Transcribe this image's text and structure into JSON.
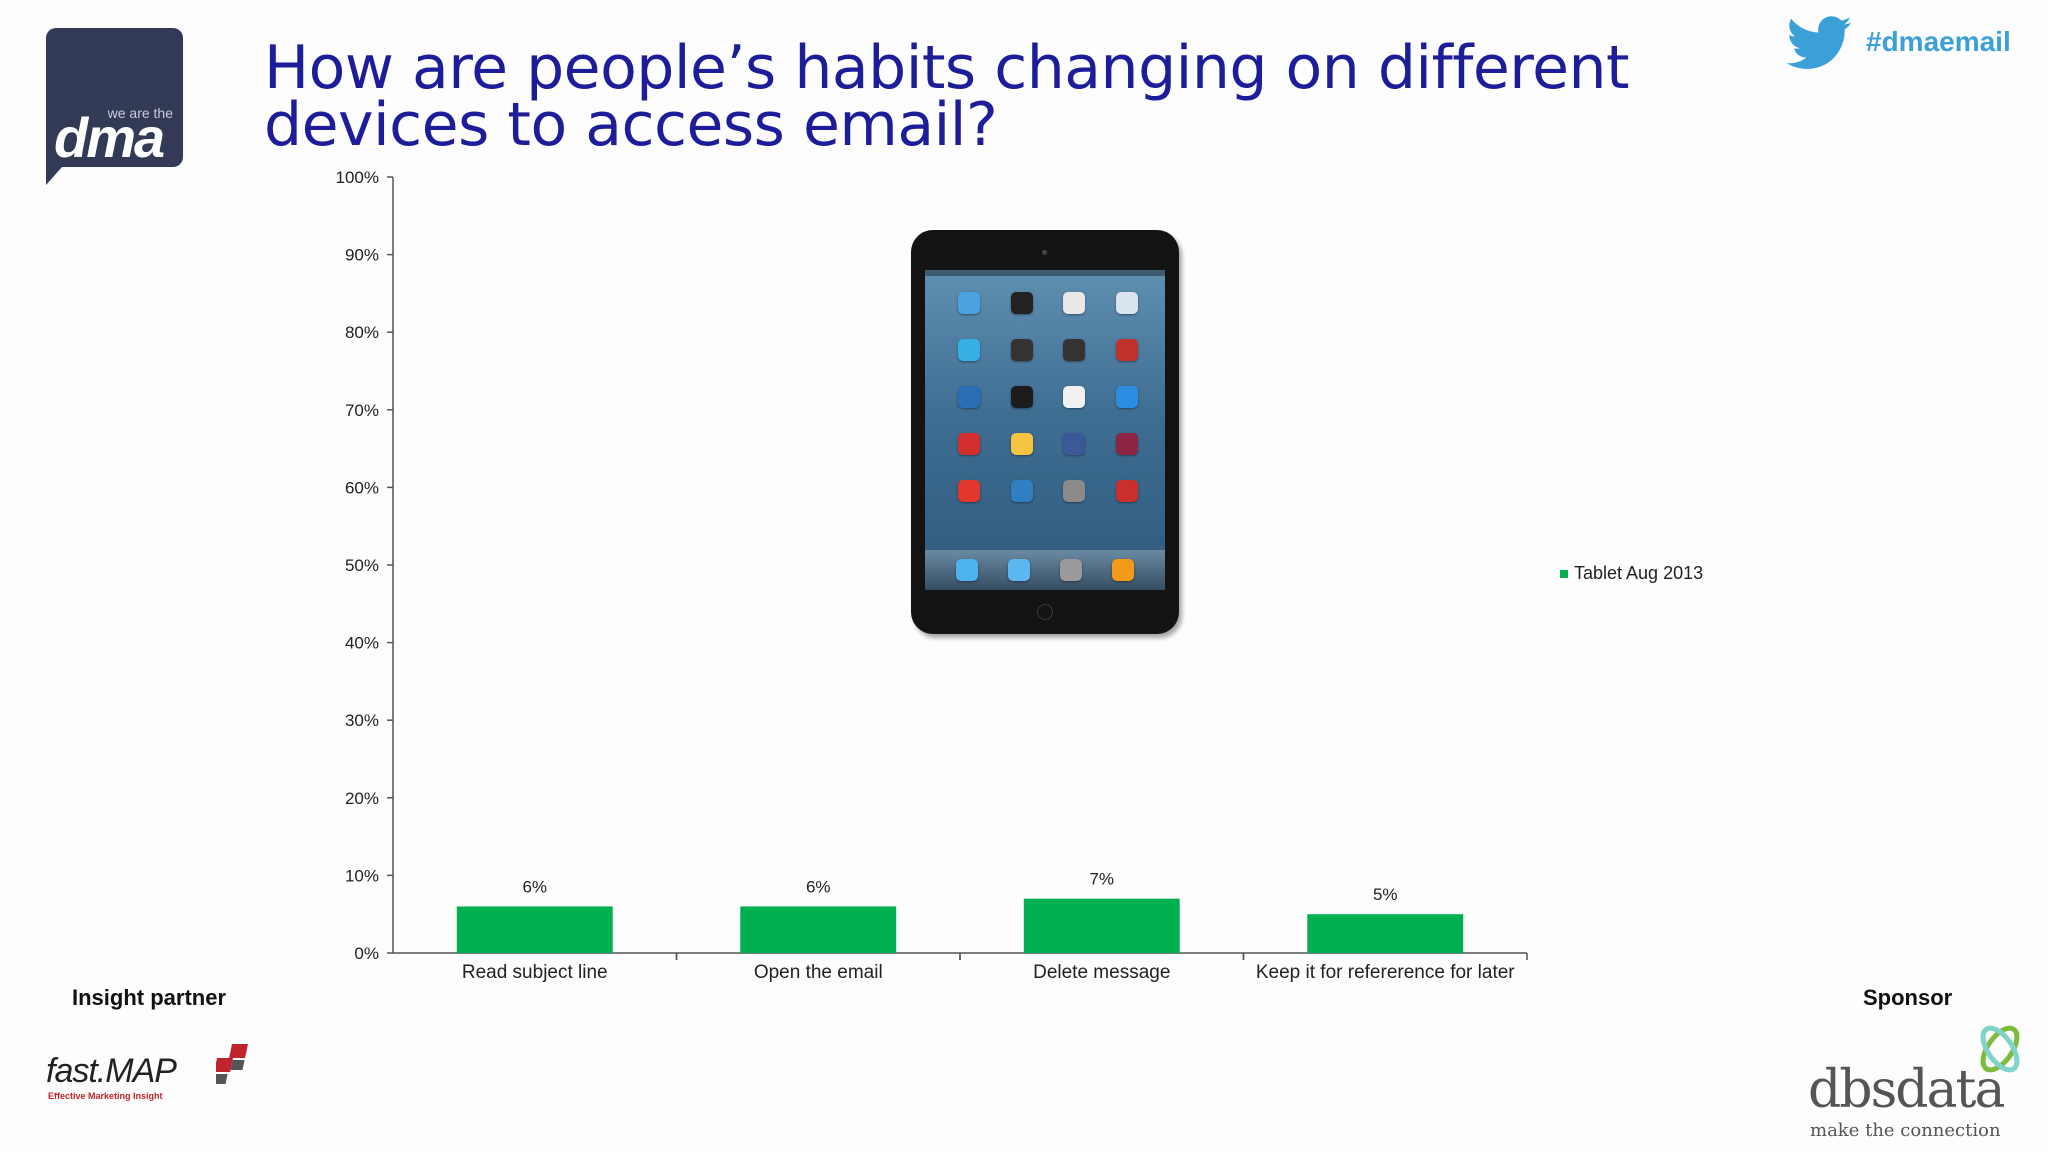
{
  "header": {
    "title": "How are people’s habits changing on different devices to access email?",
    "hashtag": "#dmaemail",
    "logo_text": "dma",
    "logo_subtext": "we are the"
  },
  "footer": {
    "insight_label": "Insight partner",
    "sponsor_label": "Sponsor",
    "insight_logo_text": "fast.MAP",
    "insight_logo_tagline": "Effective Marketing Insight",
    "sponsor_logo_text": "dbsdata",
    "sponsor_logo_tagline": "make the connection"
  },
  "colors": {
    "title": "#1d1d9a",
    "bar": "#00b050",
    "hashtag": "#3b9fd8",
    "logo_bg": "#333a55"
  },
  "icons": {
    "twitter": "twitter-bird-icon",
    "tablet": "tablet-device-image"
  },
  "chart_data": {
    "type": "bar",
    "categories": [
      "Read subject line",
      "Open the email",
      "Delete message",
      "Keep it for refererence for later"
    ],
    "series": [
      {
        "name": "Tablet Aug 2013",
        "values": [
          6,
          6,
          7,
          5
        ],
        "labels": [
          "6%",
          "6%",
          "7%",
          "5%"
        ]
      }
    ],
    "yticks": [
      "0%",
      "10%",
      "20%",
      "30%",
      "40%",
      "50%",
      "60%",
      "70%",
      "80%",
      "90%",
      "100%"
    ],
    "ylim": [
      0,
      100
    ],
    "legend_position": "right",
    "grid": false
  }
}
